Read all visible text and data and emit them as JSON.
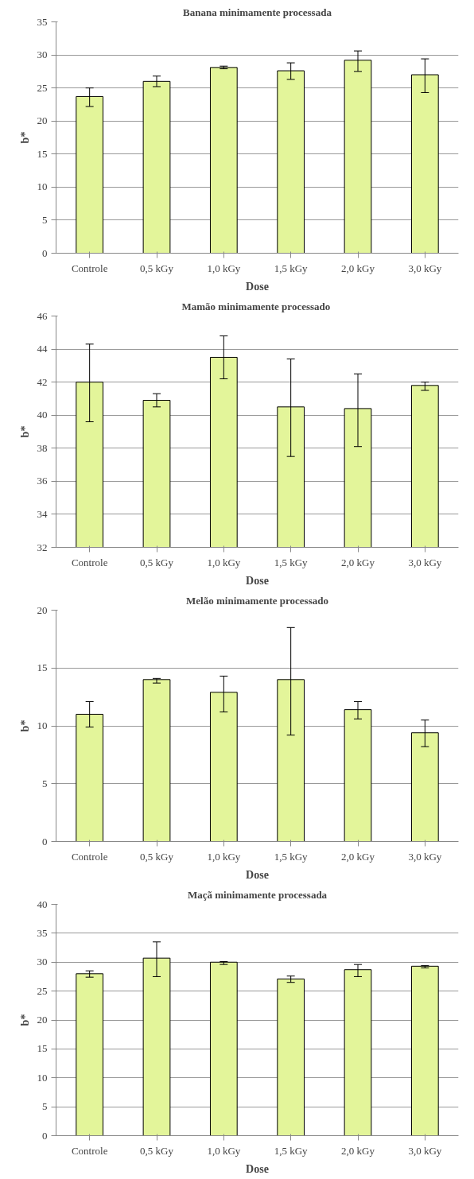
{
  "chart_data": [
    {
      "type": "bar",
      "title": "Banana minimamente processada",
      "xlabel": "Dose",
      "ylabel": "b*",
      "categories": [
        "Controle",
        "0,5 kGy",
        "1,0 kGy",
        "1,5 kGy",
        "2,0 kGy",
        "3,0 kGy"
      ],
      "values": [
        23.7,
        26.0,
        28.1,
        27.6,
        29.2,
        27.0
      ],
      "errors": [
        [
          22.2,
          25.0
        ],
        [
          25.2,
          26.8
        ],
        [
          27.9,
          28.3
        ],
        [
          26.3,
          28.8
        ],
        [
          27.5,
          30.6
        ],
        [
          24.3,
          29.4
        ]
      ],
      "color": "#e3f59a",
      "ylim": [
        0,
        35
      ],
      "yticks": [
        0,
        5,
        10,
        15,
        20,
        25,
        30,
        35
      ],
      "grid": "y"
    },
    {
      "type": "bar",
      "title": "Mamão minimamente  processado",
      "xlabel": "Dose",
      "ylabel": "b*",
      "categories": [
        "Controle",
        "0,5 kGy",
        "1,0 kGy",
        "1,5 kGy",
        "2,0 kGy",
        "3,0 kGy"
      ],
      "values": [
        42.0,
        40.9,
        43.5,
        40.5,
        40.4,
        41.8
      ],
      "errors": [
        [
          39.6,
          44.3
        ],
        [
          40.5,
          41.3
        ],
        [
          42.2,
          44.8
        ],
        [
          37.5,
          43.4
        ],
        [
          38.1,
          42.5
        ],
        [
          41.5,
          42.0
        ]
      ],
      "color": "#e3f59a",
      "ylim": [
        32,
        46
      ],
      "yticks": [
        32,
        34,
        36,
        38,
        40,
        42,
        44,
        46
      ],
      "grid": "y"
    },
    {
      "type": "bar",
      "title": "Melão minimamente processado",
      "xlabel": "Dose",
      "ylabel": "b*",
      "categories": [
        "Controle",
        "0,5 kGy",
        "1,0 kGy",
        "1,5 kGy",
        "2,0 kGy",
        "3,0 kGy"
      ],
      "values": [
        11.0,
        14.0,
        12.9,
        14.0,
        11.4,
        9.4
      ],
      "errors": [
        [
          9.9,
          12.1
        ],
        [
          13.7,
          14.1
        ],
        [
          11.2,
          14.3
        ],
        [
          9.2,
          18.5
        ],
        [
          10.6,
          12.1
        ],
        [
          8.2,
          10.5
        ]
      ],
      "color": "#e3f59a",
      "ylim": [
        0,
        20
      ],
      "yticks": [
        0,
        5,
        10,
        15,
        20
      ],
      "grid": "y"
    },
    {
      "type": "bar",
      "title": "Maçã minimamente processada",
      "xlabel": "Dose",
      "ylabel": "b*",
      "categories": [
        "Controle",
        "0,5 kGy",
        "1,0 kGy",
        "1,5 kGy",
        "2,0 kGy",
        "3,0 kGy"
      ],
      "values": [
        28.0,
        30.7,
        30.0,
        27.1,
        28.7,
        29.3
      ],
      "errors": [
        [
          27.4,
          28.5
        ],
        [
          27.5,
          33.5
        ],
        [
          29.6,
          30.1
        ],
        [
          26.5,
          27.6
        ],
        [
          27.5,
          29.6
        ],
        [
          29.0,
          29.4
        ]
      ],
      "color": "#e3f59a",
      "ylim": [
        0,
        40
      ],
      "yticks": [
        0,
        5,
        10,
        15,
        20,
        25,
        30,
        35,
        40
      ],
      "grid": "y"
    }
  ]
}
